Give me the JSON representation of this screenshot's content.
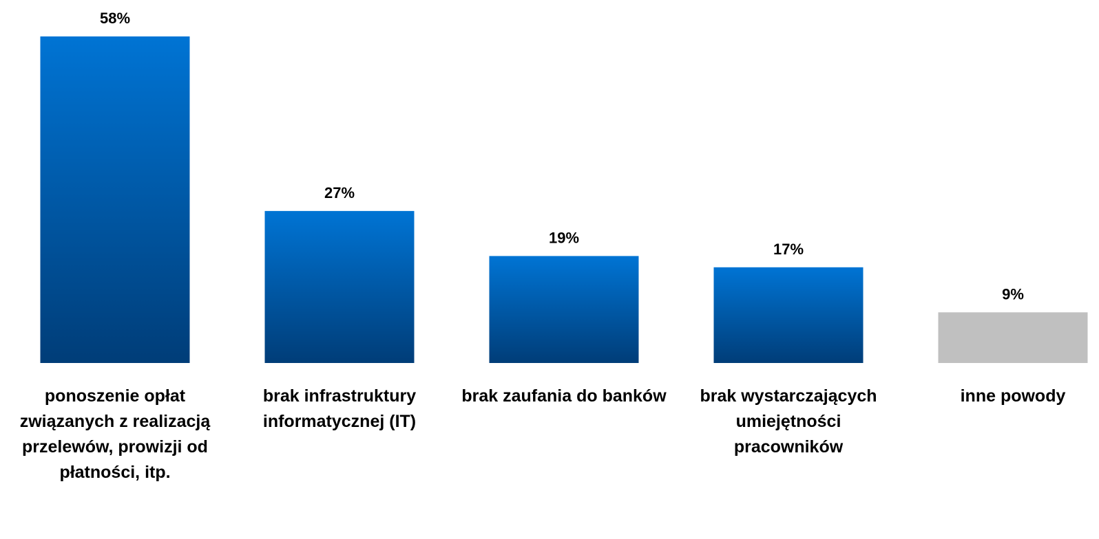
{
  "chart_data": {
    "type": "bar",
    "categories": [
      "ponoszenie opłat związanych z realizacją przelewów, prowizji od płatności, itp.",
      "brak infrastruktury informatycznej (IT)",
      "brak zaufania do banków",
      "brak wystarczających umiejętności pracowników",
      "inne powody"
    ],
    "values": [
      58,
      27,
      19,
      17,
      9
    ],
    "value_labels": [
      "58%",
      "27%",
      "19%",
      "17%",
      "9%"
    ],
    "colors": [
      [
        "#0074d4",
        "#003d78"
      ],
      [
        "#0074d4",
        "#003d78"
      ],
      [
        "#0074d4",
        "#003d78"
      ],
      [
        "#0074d4",
        "#003d78"
      ],
      [
        "#c0c0c0",
        "#c0c0c0"
      ]
    ]
  }
}
